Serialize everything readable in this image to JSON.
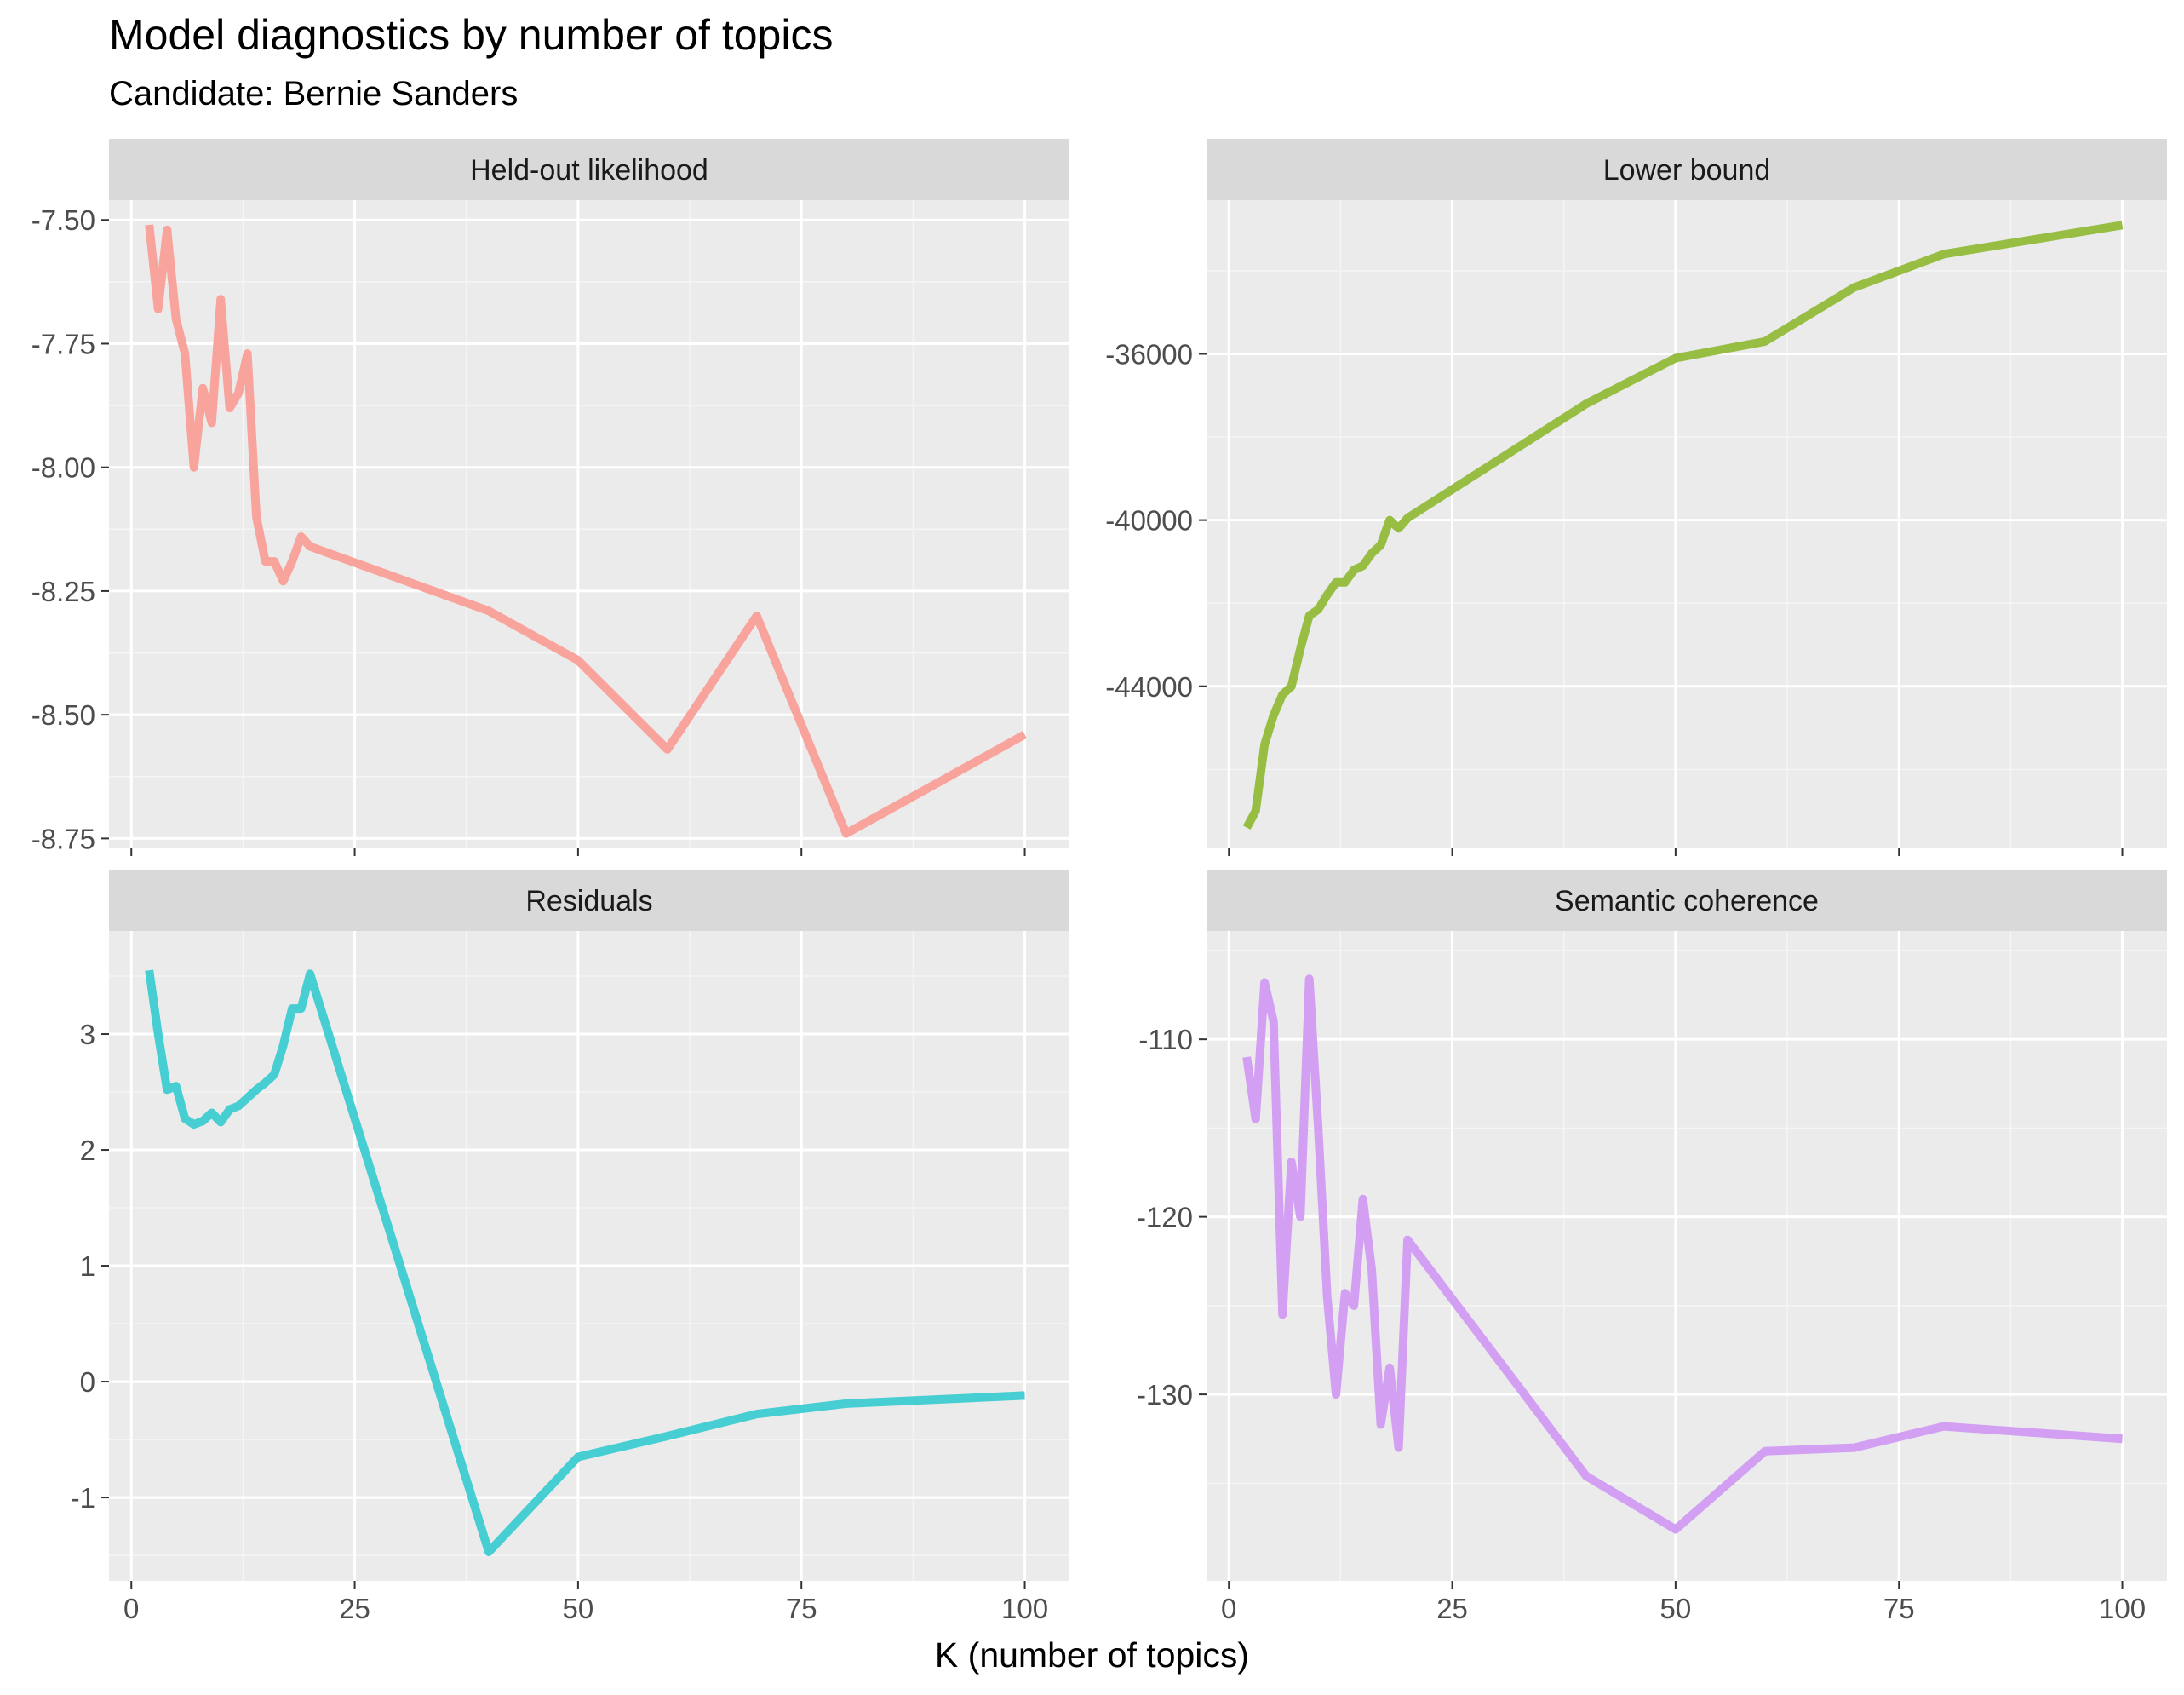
{
  "title": "Model diagnostics by number of topics",
  "subtitle": "Candidate: Bernie Sanders",
  "xaxis_title": "K (number of topics)",
  "colors": {
    "panel_bg": "#ebebeb",
    "strip_bg": "#d9d9d9",
    "grid_major": "#ffffff",
    "grid_minor": "#f5f5f5",
    "tick_text": "#4d4d4d",
    "tick_mark": "#333333"
  },
  "chart_data": [
    {
      "type": "line",
      "facet": "Held-out likelihood",
      "color": "#f8a39b",
      "xlim": [
        -2.5,
        105
      ],
      "ylim": [
        -8.77,
        -7.46
      ],
      "x_ticks": [
        0,
        25,
        50,
        75,
        100
      ],
      "y_ticks": [
        -7.5,
        -7.75,
        -8.0,
        -8.25,
        -8.5,
        -8.75
      ],
      "y_tick_labels": [
        "-7.50",
        "-7.75",
        "-8.00",
        "-8.25",
        "-8.50",
        "-8.75"
      ],
      "show_x_tick_labels": false,
      "series": [
        {
          "x": [
            2,
            3,
            4,
            5,
            6,
            7,
            8,
            9,
            10,
            11,
            12,
            13,
            14,
            15,
            16,
            17,
            18,
            19,
            20,
            40,
            50,
            60,
            70,
            80,
            100
          ],
          "y": [
            -7.51,
            -7.68,
            -7.52,
            -7.7,
            -7.77,
            -8.0,
            -7.84,
            -7.91,
            -7.66,
            -7.88,
            -7.85,
            -7.77,
            -8.1,
            -8.19,
            -8.19,
            -8.23,
            -8.19,
            -8.14,
            -8.16,
            -8.29,
            -8.39,
            -8.57,
            -8.3,
            -8.74,
            -8.54
          ]
        }
      ]
    },
    {
      "type": "line",
      "facet": "Lower bound",
      "color": "#97bd43",
      "xlim": [
        -2.5,
        105
      ],
      "ylim": [
        -47900,
        -32300
      ],
      "x_ticks": [
        0,
        25,
        50,
        75,
        100
      ],
      "y_ticks": [
        -36000,
        -40000,
        -44000
      ],
      "y_tick_labels": [
        "-36000",
        "-40000",
        "-44000"
      ],
      "show_x_tick_labels": false,
      "series": [
        {
          "x": [
            2,
            3,
            4,
            5,
            6,
            7,
            8,
            9,
            10,
            11,
            12,
            13,
            14,
            15,
            16,
            17,
            18,
            19,
            20,
            40,
            50,
            60,
            70,
            80,
            100
          ],
          "y": [
            -47400,
            -47000,
            -45400,
            -44700,
            -44200,
            -44000,
            -43100,
            -42300,
            -42150,
            -41800,
            -41500,
            -41500,
            -41200,
            -41100,
            -40800,
            -40600,
            -40000,
            -40200,
            -39950,
            -37200,
            -36100,
            -35700,
            -34400,
            -33600,
            -32900
          ]
        }
      ]
    },
    {
      "type": "line",
      "facet": "Residuals",
      "color": "#46ced3",
      "xlim": [
        -2.5,
        105
      ],
      "ylim": [
        -1.72,
        3.89
      ],
      "x_ticks": [
        0,
        25,
        50,
        75,
        100
      ],
      "y_ticks": [
        3,
        2,
        1,
        0,
        -1
      ],
      "y_tick_labels": [
        "3",
        "2",
        "1",
        "0",
        "-1"
      ],
      "show_x_tick_labels": true,
      "x_tick_labels": [
        "0",
        "25",
        "50",
        "75",
        "100"
      ],
      "series": [
        {
          "x": [
            2,
            3,
            4,
            5,
            6,
            7,
            8,
            9,
            10,
            11,
            12,
            13,
            14,
            15,
            16,
            17,
            18,
            19,
            20,
            40,
            50,
            60,
            70,
            80,
            100
          ],
          "y": [
            3.55,
            3.0,
            2.52,
            2.55,
            2.27,
            2.22,
            2.25,
            2.32,
            2.24,
            2.35,
            2.38,
            2.45,
            2.52,
            2.58,
            2.65,
            2.9,
            3.22,
            3.22,
            3.52,
            -1.47,
            -0.65,
            -0.47,
            -0.28,
            -0.19,
            -0.12
          ]
        }
      ]
    },
    {
      "type": "line",
      "facet": "Semantic coherence",
      "color": "#d29ff3",
      "xlim": [
        -2.5,
        105
      ],
      "ylim": [
        -140.5,
        -103.9
      ],
      "x_ticks": [
        0,
        25,
        50,
        75,
        100
      ],
      "y_ticks": [
        -110,
        -120,
        -130
      ],
      "y_tick_labels": [
        "-110",
        "-120",
        "-130"
      ],
      "show_x_tick_labels": true,
      "x_tick_labels": [
        "0",
        "25",
        "50",
        "75",
        "100"
      ],
      "series": [
        {
          "x": [
            2,
            3,
            4,
            5,
            6,
            7,
            8,
            9,
            10,
            11,
            12,
            13,
            14,
            15,
            16,
            17,
            18,
            19,
            20,
            40,
            50,
            60,
            70,
            80,
            100
          ],
          "y": [
            -111,
            -114.5,
            -106.8,
            -109,
            -125.5,
            -116.9,
            -120,
            -106.6,
            -115,
            -124.5,
            -130,
            -124.3,
            -125,
            -119,
            -123,
            -131.7,
            -128.5,
            -133,
            -121.3,
            -134.6,
            -137.6,
            -133.2,
            -133,
            -131.8,
            -132.5
          ]
        }
      ]
    }
  ]
}
